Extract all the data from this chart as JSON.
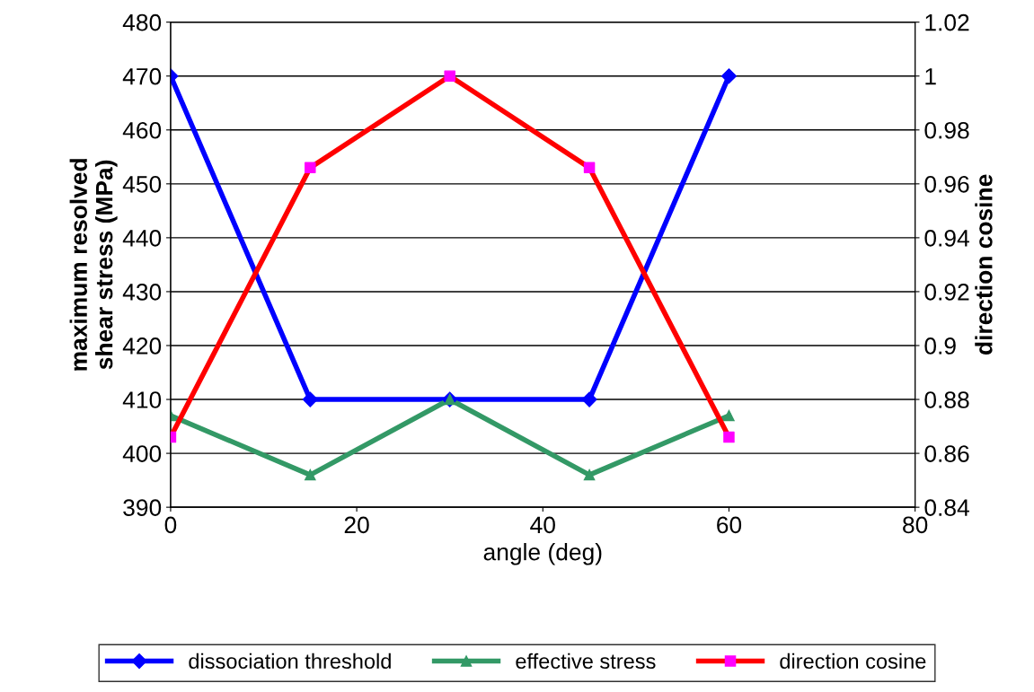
{
  "chart_data": {
    "type": "line",
    "xlabel": "angle (deg)",
    "ylabel": "maximum resolved\nshear stress (MPa)",
    "y2label": "direction cosine",
    "x": [
      0,
      15,
      30,
      45,
      60
    ],
    "series": [
      {
        "name": "dissociation threshold",
        "color": "#0000ff",
        "values": [
          470,
          410,
          410,
          410,
          470
        ],
        "marker": "diamond"
      },
      {
        "name": "effective stress",
        "color": "#339966",
        "values": [
          407,
          396,
          410,
          396,
          407
        ],
        "marker": "triangle"
      },
      {
        "name": "direction cosine",
        "color": "#ff0000",
        "values": [
          0.866,
          0.966,
          1,
          0.966,
          0.866
        ],
        "marker": "square",
        "axis": "y2",
        "colors": [
          "#ff00ff",
          "#ff00ff",
          "#ff00ff",
          "#ff00ff",
          "#ff00ff"
        ]
      }
    ],
    "xlim": [
      0,
      80
    ],
    "xticks": [
      0,
      20,
      40,
      60,
      80
    ],
    "ylim": [
      390,
      480
    ],
    "yticks": [
      390,
      400,
      410,
      420,
      430,
      440,
      450,
      460,
      470,
      480
    ],
    "y2lim": [
      0.84,
      1.02
    ],
    "y2ticks": [
      0.84,
      0.86,
      0.88,
      0.9,
      0.92,
      0.94,
      0.96,
      0.98,
      1,
      1.02
    ],
    "grid": "y",
    "legend": "bottom",
    "line_style": "solid"
  }
}
